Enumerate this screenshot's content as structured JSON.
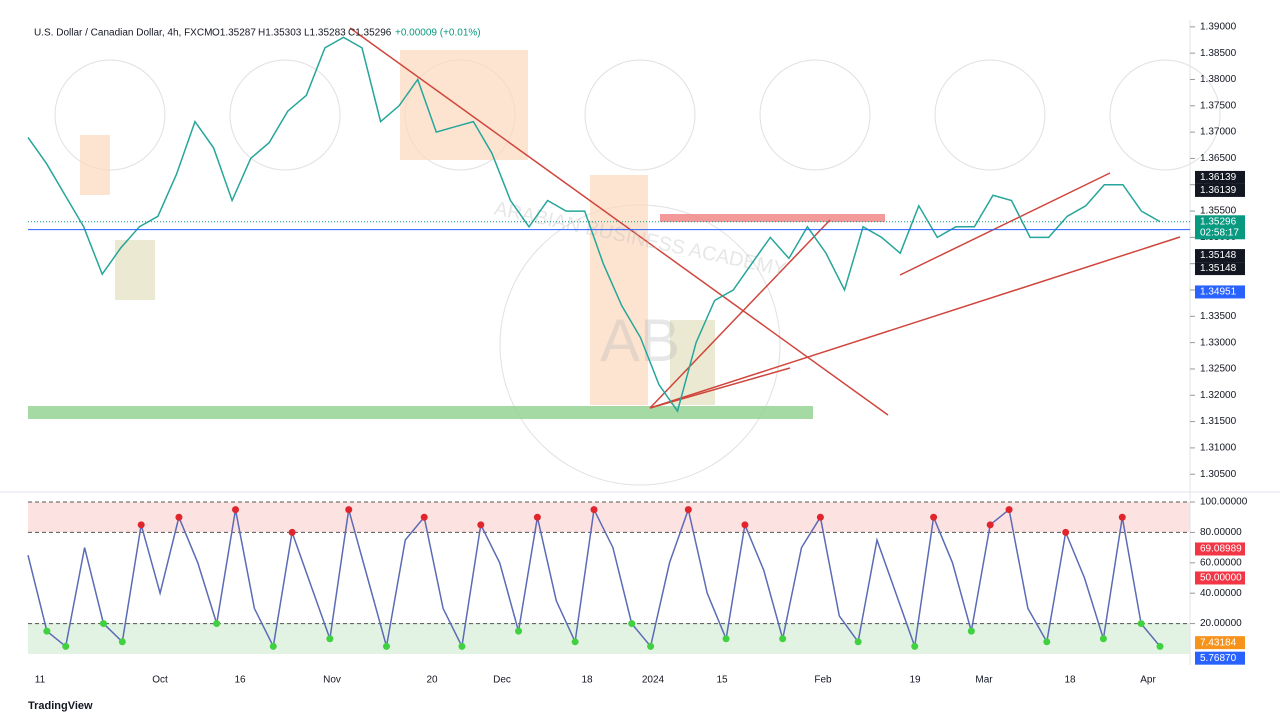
{
  "header": {
    "symbol": "U.S. Dollar / Canadian Dollar, 4h, FXCM",
    "open": "O1.35287",
    "high": "H1.35303",
    "low": "L1.35283",
    "close": "C1.35296",
    "change": "+0.00009 (+0.01%)"
  },
  "watermark": {
    "logo": "AB",
    "name": "ARABIAN BUSINESS ACADEMY"
  },
  "price_chart": {
    "type": "line",
    "color": "#26a69a",
    "ylim": [
      1.302,
      1.3913
    ],
    "yticks": [
      {
        "value": 1.39,
        "label": "1.39000"
      },
      {
        "value": 1.385,
        "label": "1.38500"
      },
      {
        "value": 1.38,
        "label": "1.38000"
      },
      {
        "value": 1.375,
        "label": "1.37500"
      },
      {
        "value": 1.37,
        "label": "1.37000"
      },
      {
        "value": 1.365,
        "label": "1.36500"
      },
      {
        "value": 1.36,
        "label": "1.36000"
      },
      {
        "value": 1.355,
        "label": "1.35500"
      },
      {
        "value": 1.35,
        "label": "1.35000"
      },
      {
        "value": 1.345,
        "label": "1.34500"
      },
      {
        "value": 1.34,
        "label": "1.34000"
      },
      {
        "value": 1.335,
        "label": "1.33500"
      },
      {
        "value": 1.33,
        "label": "1.33000"
      },
      {
        "value": 1.325,
        "label": "1.32500"
      },
      {
        "value": 1.32,
        "label": "1.32000"
      },
      {
        "value": 1.315,
        "label": "1.31500"
      },
      {
        "value": 1.31,
        "label": "1.31000"
      },
      {
        "value": 1.305,
        "label": "1.30500"
      }
    ],
    "closes": [
      1.369,
      1.364,
      1.358,
      1.352,
      1.343,
      1.348,
      1.352,
      1.354,
      1.362,
      1.372,
      1.367,
      1.357,
      1.365,
      1.368,
      1.374,
      1.377,
      1.386,
      1.388,
      1.386,
      1.372,
      1.375,
      1.38,
      1.37,
      1.371,
      1.372,
      1.366,
      1.357,
      1.352,
      1.357,
      1.355,
      1.355,
      1.345,
      1.337,
      1.331,
      1.322,
      1.317,
      1.33,
      1.338,
      1.34,
      1.345,
      1.35,
      1.346,
      1.352,
      1.347,
      1.34,
      1.352,
      1.35,
      1.347,
      1.356,
      1.35,
      1.352,
      1.352,
      1.358,
      1.357,
      1.35,
      1.35,
      1.354,
      1.356,
      1.36,
      1.36,
      1.355,
      1.353
    ],
    "tags": [
      {
        "price": 1.36139,
        "color": "#131722"
      },
      {
        "price": 1.36139,
        "color": "#131722"
      },
      {
        "price": 1.35296,
        "color": "#089981",
        "timer": "02:58:17"
      },
      {
        "price": 1.35148,
        "color": "#131722"
      },
      {
        "price": 1.35148,
        "color": "#131722"
      },
      {
        "price": 1.34951,
        "color": "#2962ff"
      }
    ]
  },
  "stoch_chart": {
    "type": "line",
    "color": "#5b6bb5",
    "ylim": [
      -5.3,
      106.6
    ],
    "yticks": [
      {
        "value": 100,
        "label": "100.00000"
      },
      {
        "value": 80,
        "label": "80.00000"
      },
      {
        "value": 60,
        "label": "60.00000"
      },
      {
        "value": 40,
        "label": "40.00000"
      },
      {
        "value": 20,
        "label": "20.00000"
      }
    ],
    "values": [
      65,
      15,
      5,
      70,
      20,
      8,
      85,
      40,
      90,
      60,
      20,
      95,
      30,
      5,
      80,
      45,
      10,
      95,
      50,
      5,
      75,
      90,
      30,
      5,
      85,
      60,
      15,
      90,
      35,
      8,
      95,
      70,
      20,
      5,
      60,
      95,
      40,
      10,
      85,
      55,
      10,
      70,
      90,
      25,
      8,
      75,
      40,
      5,
      90,
      60,
      15,
      85,
      95,
      30,
      8,
      80,
      50,
      10,
      90,
      20,
      5
    ],
    "tags": [
      {
        "value": 69.08989,
        "label": "69.08989",
        "color": "#f23645"
      },
      {
        "value": 50,
        "label": "50.00000",
        "color": "#f23645"
      },
      {
        "value": 7.43184,
        "label": "7.43184",
        "color": "#f7931a"
      },
      {
        "value": 5.7687,
        "label": "5.76870",
        "color": "#2962ff"
      }
    ]
  },
  "date_axis": [
    "11",
    "Oct",
    "16",
    "Nov",
    "20",
    "Dec",
    "18",
    "2024",
    "15",
    "Feb",
    "19",
    "Mar",
    "18",
    "Apr"
  ],
  "footer": {
    "brand": "TradingView"
  }
}
